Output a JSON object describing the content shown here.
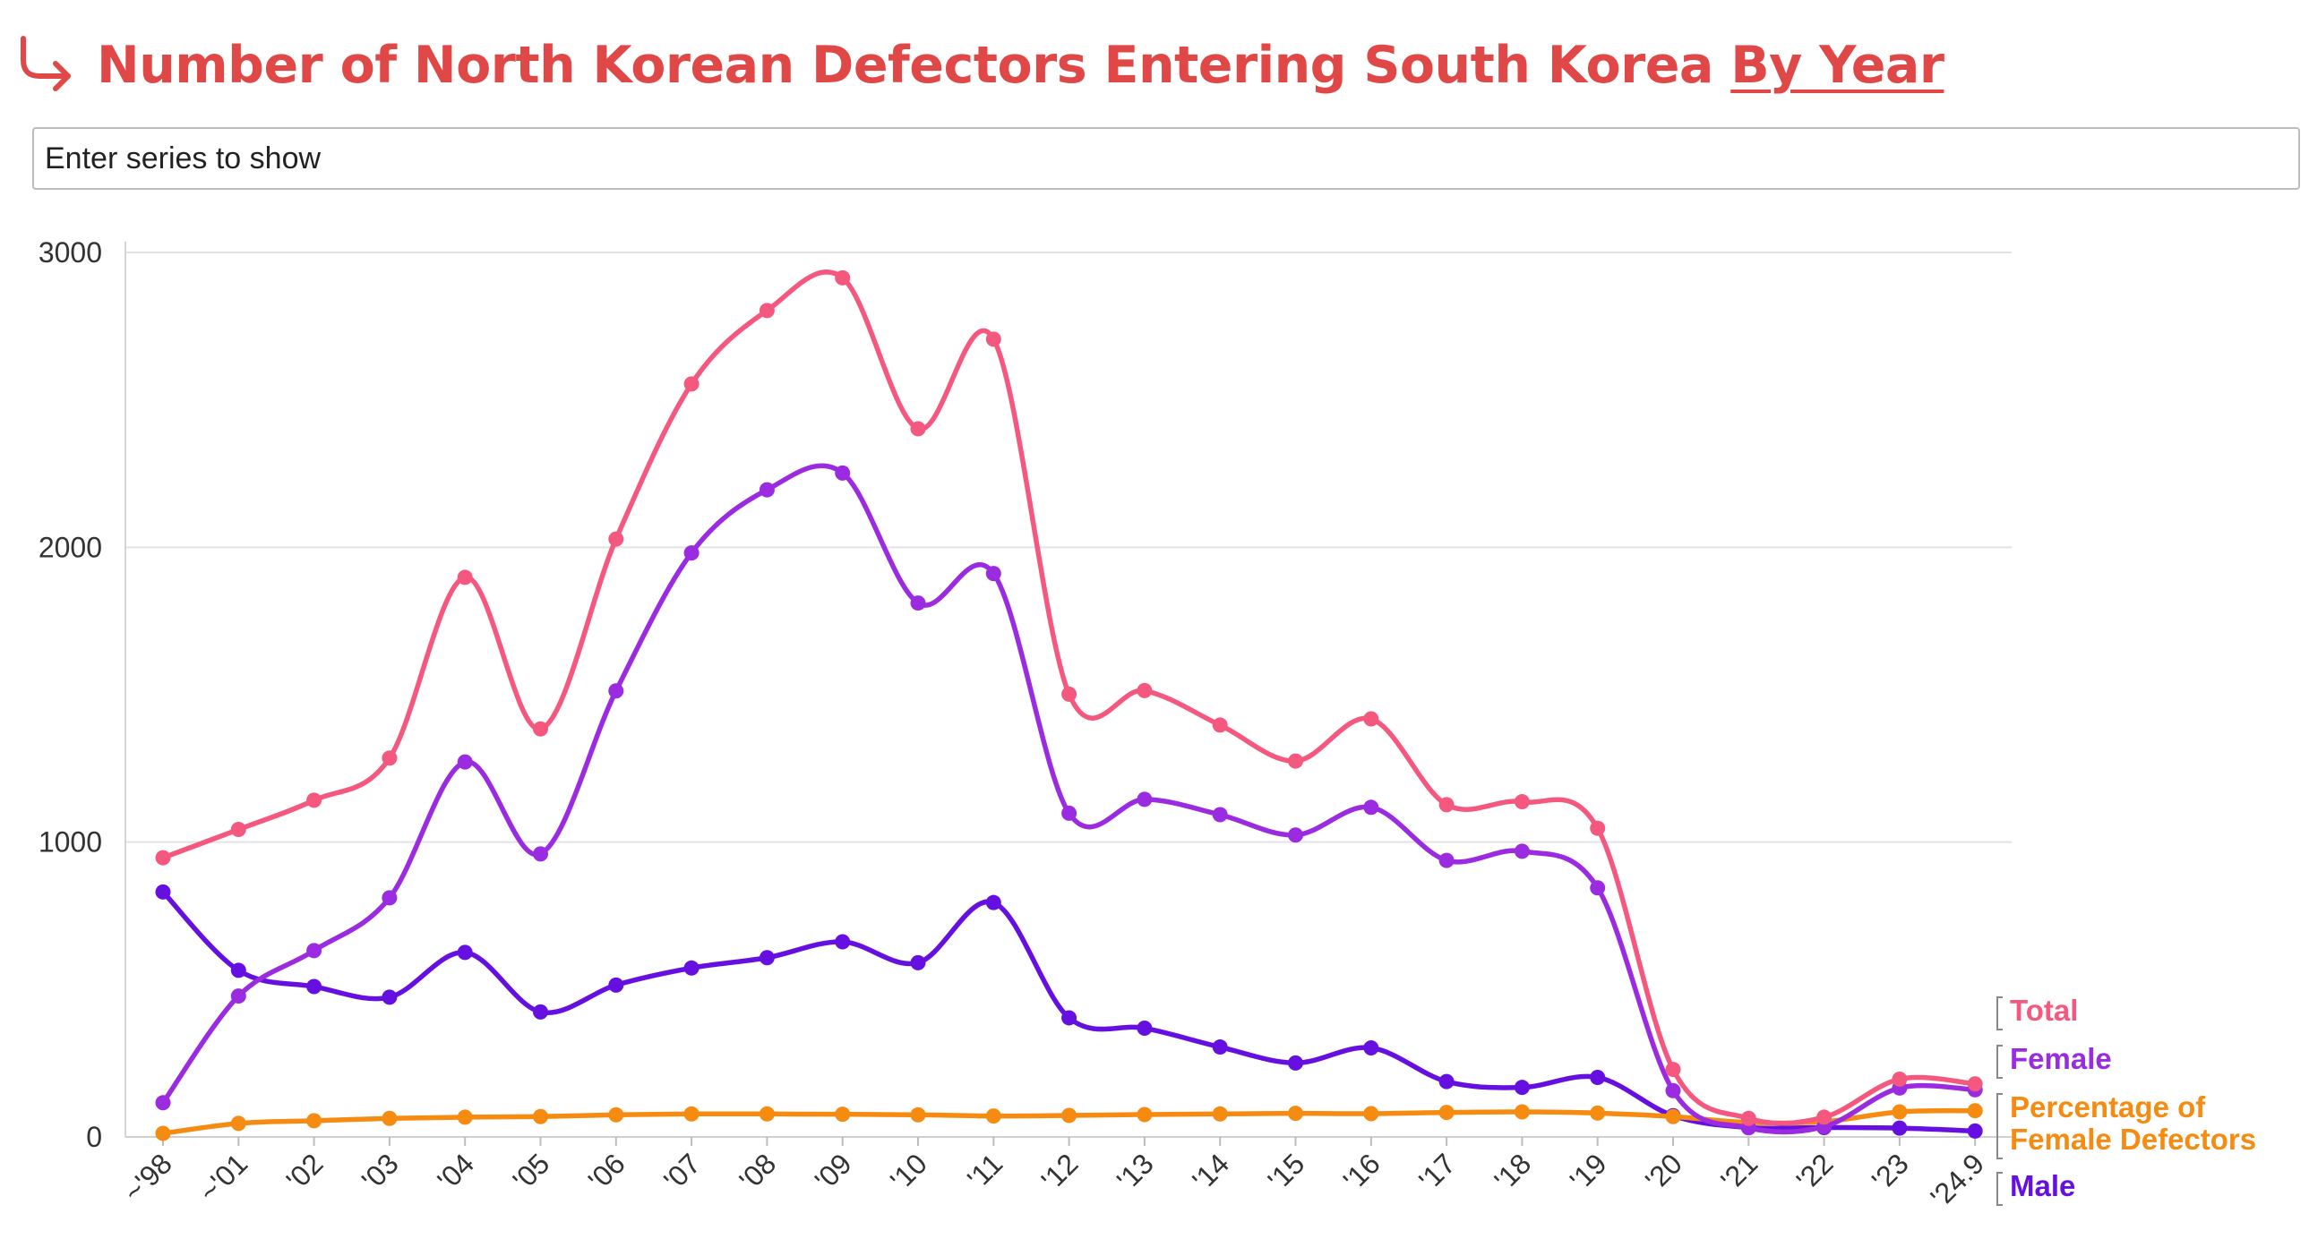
{
  "header": {
    "title_main": "Number of North Korean Defectors Entering South Korea ",
    "title_link": "By Year",
    "icon": "arrow-return-right-icon",
    "color": "#e04848"
  },
  "search": {
    "placeholder": "Enter series to show"
  },
  "chart_data": {
    "type": "line",
    "title": "Number of North Korean Defectors Entering South Korea By Year",
    "categories": [
      "~'98",
      "~'01",
      "'02",
      "'03",
      "'04",
      "'05",
      "'06",
      "'07",
      "'08",
      "'09",
      "'10",
      "'11",
      "'12",
      "'13",
      "'14",
      "'15",
      "'16",
      "'17",
      "'18",
      "'19",
      "'20",
      "'21",
      "'22",
      "'23",
      "'24.9"
    ],
    "ylim": [
      0,
      3000
    ],
    "yticks": [
      0,
      1000,
      2000,
      3000
    ],
    "grid": true,
    "legend_placement": "right, end of lines",
    "series": [
      {
        "name": "Total",
        "color": "#f5587f",
        "values": [
          947,
          1043,
          1142,
          1285,
          1898,
          1384,
          2028,
          2554,
          2803,
          2914,
          2402,
          2706,
          1502,
          1514,
          1397,
          1275,
          1418,
          1127,
          1137,
          1047,
          229,
          63,
          67,
          196,
          180
        ]
      },
      {
        "name": "Female",
        "color": "#9a2be0",
        "values": [
          116,
          478,
          632,
          811,
          1272,
          960,
          1513,
          1981,
          2195,
          2252,
          1811,
          1911,
          1098,
          1145,
          1093,
          1024,
          1118,
          938,
          969,
          845,
          157,
          31,
          35,
          166,
          160
        ]
      },
      {
        "name": "Percentage of Female Defectors",
        "color": "#f58b10",
        "values": [
          12,
          46,
          55,
          63,
          67,
          69,
          75,
          78,
          78,
          77,
          75,
          71,
          73,
          76,
          78,
          80,
          79,
          83,
          85,
          81,
          69,
          49,
          52,
          85,
          89
        ]
      },
      {
        "name": "Male",
        "color": "#6510e0",
        "values": [
          831,
          565,
          510,
          474,
          626,
          424,
          515,
          573,
          608,
          662,
          591,
          795,
          404,
          369,
          305,
          251,
          302,
          188,
          168,
          202,
          72,
          32,
          32,
          30,
          20
        ]
      }
    ]
  }
}
